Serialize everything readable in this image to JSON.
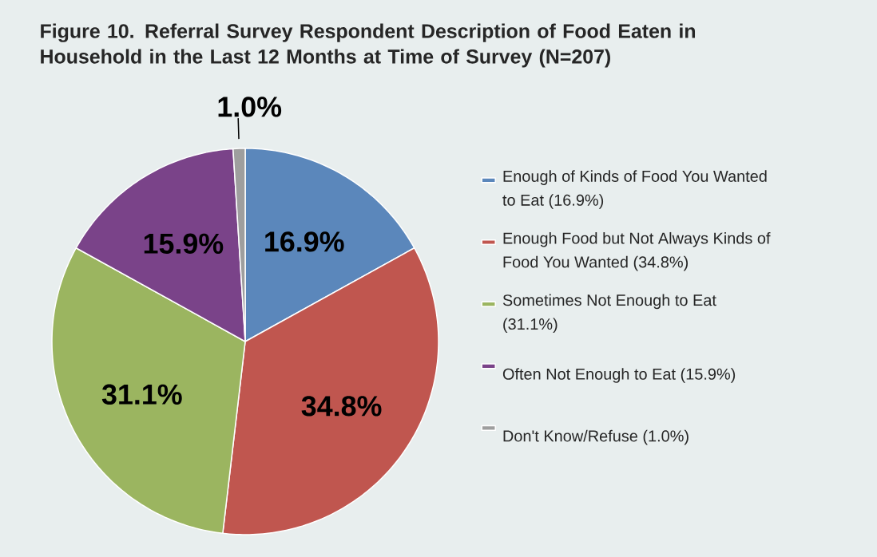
{
  "chart_data": {
    "type": "pie",
    "title": "Figure 10. Referral Survey Respondent Description of Food Eaten in Household in the Last 12 Months at Time of Survey (N=207)",
    "categories": [
      "Enough of Kinds of Food You Wanted to Eat (16.9%)",
      "Enough Food but Not Always Kinds of Food You Wanted (34.8%)",
      "Sometimes Not Enough to Eat (31.1%)",
      "Often Not Enough to Eat (15.9%)",
      "Don't Know/Refuse (1.0%)"
    ],
    "values": [
      16.9,
      34.8,
      31.1,
      15.9,
      1.0
    ],
    "value_labels": [
      "16.9%",
      "34.8%",
      "31.1%",
      "15.9%",
      "1.0%"
    ],
    "colors": [
      "#5b87bb",
      "#c0564f",
      "#9bb560",
      "#7a4389",
      "#9e9e9e"
    ],
    "legend": "right"
  }
}
